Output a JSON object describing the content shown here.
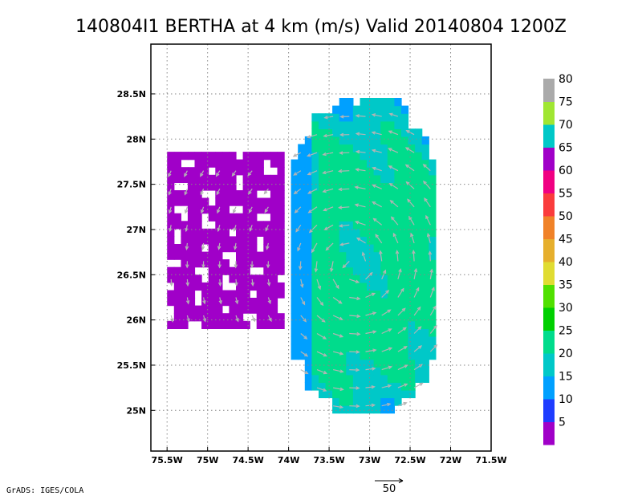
{
  "chart_data": {
    "type": "heatmap",
    "title": "140804I1 BERTHA at 4 km (m/s) Valid 20140804  1200Z",
    "x_ticks": [
      "75.5W",
      "75W",
      "74.5W",
      "74W",
      "73.5W",
      "73W",
      "72.5W",
      "72W",
      "71.5W"
    ],
    "y_ticks": [
      "28.5N",
      "28N",
      "27.5N",
      "27N",
      "26.5N",
      "26N",
      "25.5N",
      "25N"
    ],
    "xlim": [
      -75.7,
      -71.5
    ],
    "ylim": [
      24.55,
      29.05
    ],
    "grid": true,
    "colorbar": {
      "labels": [
        "5",
        "10",
        "15",
        "20",
        "25",
        "30",
        "35",
        "40",
        "45",
        "50",
        "55",
        "60",
        "65",
        "70",
        "75",
        "80"
      ],
      "colors": [
        "#a000c8",
        "#1e3cff",
        "#00a0ff",
        "#00c8c8",
        "#00dc8c",
        "#00d000",
        "#50e000",
        "#e0dc32",
        "#e6af2d",
        "#f08228",
        "#fa3c3c",
        "#f00082",
        "#a000c8",
        "#00c8c8",
        "#a0e632",
        "#aaaaaa"
      ]
    },
    "field": {
      "center_lon": -73.2,
      "center_lat": 26.6,
      "rain_bands": [
        {
          "lon_min": -74.0,
          "lon_max": -72.2,
          "lat_min": 24.9,
          "lat_max": 28.4
        },
        {
          "lon_min": -75.5,
          "lon_max": -74.1,
          "lat_min": 25.9,
          "lat_max": 27.8
        }
      ]
    },
    "reference_vector": {
      "value": "50"
    }
  },
  "credit": "GrADS: IGES/COLA"
}
